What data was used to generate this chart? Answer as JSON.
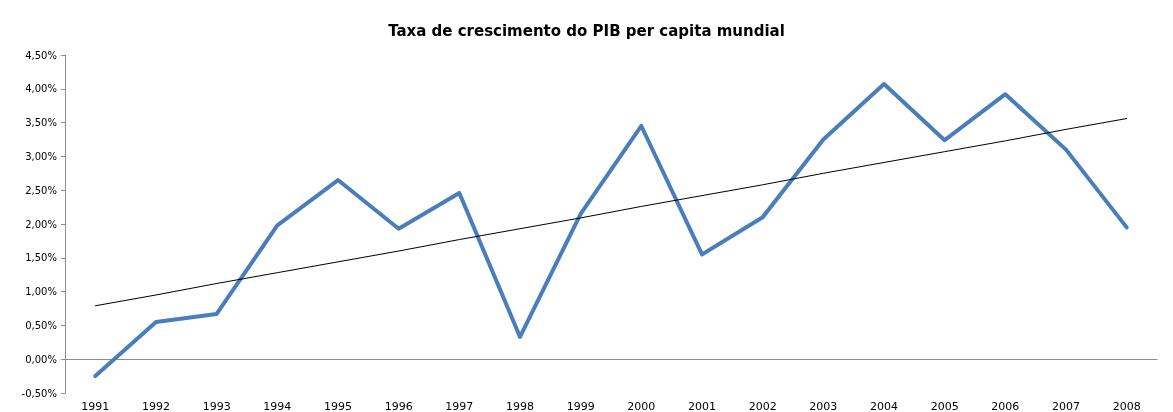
{
  "chart_data": {
    "type": "line",
    "title": "Taxa de crescimento do PIB per capita mundial",
    "categories": [
      "1991",
      "1992",
      "1993",
      "1994",
      "1995",
      "1996",
      "1997",
      "1998",
      "1999",
      "2000",
      "2001",
      "2002",
      "2003",
      "2004",
      "2005",
      "2006",
      "2007",
      "2008"
    ],
    "series": [
      {
        "color": "#4a7ebb",
        "values": [
          -0.25,
          0.55,
          0.67,
          1.98,
          2.65,
          1.93,
          2.46,
          0.33,
          2.15,
          3.45,
          1.55,
          2.1,
          3.25,
          4.07,
          3.24,
          3.92,
          3.1,
          1.95
        ]
      },
      {
        "type": "line",
        "color": "#000000",
        "values": [
          0.79,
          0.95,
          1.12,
          1.28,
          1.44,
          1.6,
          1.77,
          1.93,
          2.09,
          2.26,
          2.42,
          2.58,
          2.75,
          2.91,
          3.07,
          3.23,
          3.4,
          3.56
        ]
      }
    ],
    "ylim": [
      -0.5,
      4.5
    ],
    "yticks": [
      {
        "value": -0.5,
        "label": "-0,50%"
      },
      {
        "value": 0,
        "label": "0,00%"
      },
      {
        "value": 0.5,
        "label": "0,50%"
      },
      {
        "value": 1,
        "label": "1,00%"
      },
      {
        "value": 1.5,
        "label": "1,50%"
      },
      {
        "value": 2,
        "label": "2,00%"
      },
      {
        "value": 2.5,
        "label": "2,50%"
      },
      {
        "value": 3,
        "label": "3,00%"
      },
      {
        "value": 3.5,
        "label": "3,50%"
      },
      {
        "value": 4,
        "label": "4,00%"
      },
      {
        "value": 4.5,
        "label": "4,50%"
      }
    ],
    "marker": "none",
    "line_style": "solid"
  }
}
